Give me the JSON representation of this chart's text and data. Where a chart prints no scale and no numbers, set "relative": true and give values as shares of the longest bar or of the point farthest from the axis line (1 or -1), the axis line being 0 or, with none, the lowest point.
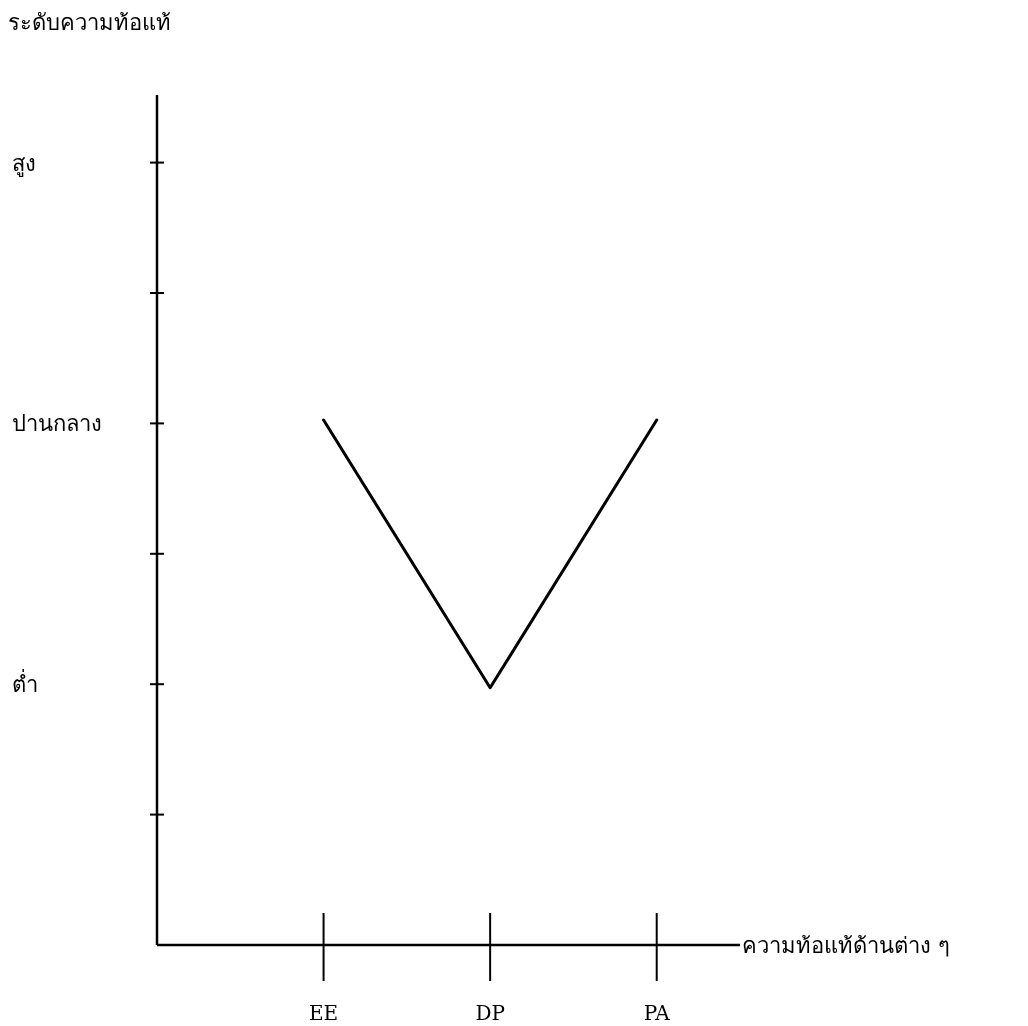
{
  "chart_data": {
    "type": "line",
    "title": "ระดับความท้อแท้",
    "xlabel": "ความท้อแท้ด้านต่าง ๆ",
    "categories": [
      "EE",
      "DP",
      "PA"
    ],
    "values": [
      1,
      0.49,
      1
    ],
    "relative": true,
    "color": "#000000",
    "annotations": [
      "สูง",
      "ปานกลาง",
      "ต่ำ"
    ],
    "grid": false,
    "marker": "none",
    "line_style": "solid"
  }
}
